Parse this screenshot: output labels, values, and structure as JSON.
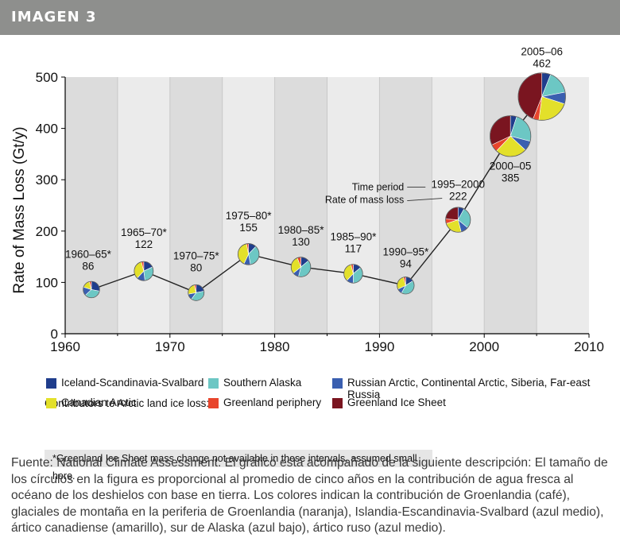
{
  "header": {
    "title": "IMAGEN 3"
  },
  "chart_data": {
    "type": "line",
    "ylabel": "Rate of Mass Loss (Gt/y)",
    "xlim": [
      1960,
      2010
    ],
    "ylim": [
      0,
      500
    ],
    "x_ticks": [
      1960,
      1970,
      1980,
      1990,
      2000,
      2010
    ],
    "y_ticks": [
      0,
      100,
      200,
      300,
      400,
      500
    ],
    "grid": "vertical bands",
    "points": [
      {
        "period": "1960–65*",
        "x": 1962.5,
        "y": 86,
        "label": "86"
      },
      {
        "period": "1965–70*",
        "x": 1967.5,
        "y": 122,
        "label": "122"
      },
      {
        "period": "1970–75*",
        "x": 1972.5,
        "y": 80,
        "label": "80"
      },
      {
        "period": "1975–80*",
        "x": 1977.5,
        "y": 155,
        "label": "155"
      },
      {
        "period": "1980–85*",
        "x": 1982.5,
        "y": 130,
        "label": "130"
      },
      {
        "period": "1985–90*",
        "x": 1987.5,
        "y": 117,
        "label": "117"
      },
      {
        "period": "1990–95*",
        "x": 1992.5,
        "y": 94,
        "label": "94"
      },
      {
        "period": "1995–2000",
        "x": 1997.5,
        "y": 222,
        "label": "222"
      },
      {
        "period": "2000–05",
        "x": 2002.5,
        "y": 385,
        "label": "385"
      },
      {
        "period": "2005–06",
        "x": 2005.5,
        "y": 462,
        "label": "462"
      }
    ],
    "annotations": {
      "time_period": "Time period",
      "rate": "Rate of mass loss"
    },
    "legend_title": "Contributors to Arctic land ice loss:",
    "legend": [
      {
        "name": "Iceland-Scandinavia-Svalbard",
        "color": "#1f3d8c"
      },
      {
        "name": "Southern Alaska",
        "color": "#6cc7c4"
      },
      {
        "name": "Russian Arctic, Continental Arctic, Siberia, Far-east Russia",
        "color": "#3a5fb0"
      },
      {
        "name": "Canadian Arctic",
        "color": "#e3e02a"
      },
      {
        "name": "Greenland periphery",
        "color": "#e8452c"
      },
      {
        "name": "Greenland Ice Sheet",
        "color": "#7a1520"
      }
    ],
    "footnote": "*Greenland Ice Sheet mass change not available in these intervals, assumed small here."
  },
  "caption": "Fuente:  National Climate Assessment. El gráfico está acompañado de la siguiente descripción: El tamaño de los círculos en la figura es proporcional al promedio de cinco años en la contribución de agua fresca al océano de los deshielos con base en tierra. Los colores indican la contribución de Groenlandia (café), glaciales de montaña en la periferia de Groenlandia (naranja), Islandia-Escandinavia-Svalbard (azul medio), ártico canadiense (amarillo), sur de Alaska (azul bajo), ártico ruso (azul medio)."
}
